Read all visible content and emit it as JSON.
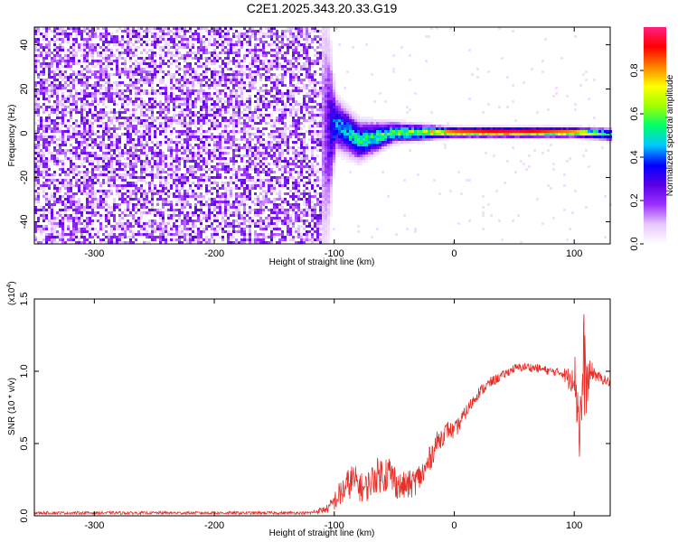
{
  "title": "C2E1.2025.343.20.33.G19",
  "chart_data": [
    {
      "type": "heatmap",
      "title": "",
      "xlabel": "Height of straight line (km)",
      "ylabel": "Frequency (Hz)",
      "xlim": [
        -350,
        130
      ],
      "ylim": [
        -50,
        48
      ],
      "x_ticks": [
        "-300",
        "-200",
        "-100",
        "0",
        "100"
      ],
      "y_ticks": [
        "-40",
        "-20",
        "0",
        "20",
        "40"
      ],
      "colorbar": {
        "label": "Normalized spectral amplitude",
        "range": [
          0,
          1
        ],
        "ticks": [
          "0.0",
          "0.2",
          "0.4",
          "0.6",
          "0.8"
        ],
        "colors": [
          "#ffffff",
          "#e6c8ff",
          "#9b30ff",
          "#5a00e6",
          "#0000ff",
          "#00c8ff",
          "#00ff6a",
          "#a0ff00",
          "#ffff00",
          "#ff8000",
          "#ff0000",
          "#ff1f80"
        ]
      },
      "description_points": [
        {
          "x": -350,
          "freq_center": 0,
          "spread": 48,
          "amp": 0.15
        },
        {
          "x": -110,
          "freq_center": 0,
          "spread": 48,
          "amp": 0.15
        },
        {
          "x": -100,
          "freq_center": 5,
          "spread": 8,
          "amp": 0.45
        },
        {
          "x": -80,
          "freq_center": -3,
          "spread": 6,
          "amp": 0.55
        },
        {
          "x": -50,
          "freq_center": 1,
          "spread": 3,
          "amp": 0.6
        },
        {
          "x": 0,
          "freq_center": 1,
          "spread": 1.5,
          "amp": 0.85
        },
        {
          "x": 50,
          "freq_center": 1,
          "spread": 1.5,
          "amp": 0.95
        },
        {
          "x": 100,
          "freq_center": 1,
          "spread": 1.5,
          "amp": 0.8
        },
        {
          "x": 130,
          "freq_center": 0,
          "spread": 2,
          "amp": 0.5
        }
      ]
    },
    {
      "type": "line",
      "title": "",
      "xlabel": "Height of straight line (km)",
      "ylabel": "SNR (10 * v/v)",
      "scale_label": "(x10",
      "scale_exp": "4",
      "scale_close": ")",
      "xlim": [
        -350,
        130
      ],
      "ylim": [
        0,
        1.5
      ],
      "x_ticks": [
        "-300",
        "-200",
        "-100",
        "0",
        "100"
      ],
      "y_ticks": [
        "0.0",
        "0.5",
        "1.0",
        "1.5"
      ],
      "line_color": "#e8302a",
      "series": [
        {
          "x": [
            -350,
            -300,
            -250,
            -200,
            -150,
            -120,
            -105,
            -95,
            -85,
            -75,
            -65,
            -55,
            -45,
            -35,
            -25,
            -15,
            -5,
            0,
            10,
            20,
            30,
            40,
            50,
            60,
            70,
            80,
            90,
            95,
            100,
            105,
            108,
            110,
            115,
            120,
            130
          ],
          "y": [
            0.02,
            0.02,
            0.02,
            0.02,
            0.02,
            0.02,
            0.05,
            0.15,
            0.25,
            0.18,
            0.28,
            0.3,
            0.2,
            0.22,
            0.3,
            0.5,
            0.6,
            0.58,
            0.72,
            0.85,
            0.92,
            0.97,
            1.02,
            1.03,
            1.02,
            1.0,
            0.99,
            0.95,
            1.0,
            0.6,
            1.05,
            0.9,
            1.0,
            0.96,
            0.92
          ],
          "noise": [
            0.01,
            0.01,
            0.01,
            0.01,
            0.01,
            0.01,
            0.03,
            0.1,
            0.12,
            0.1,
            0.12,
            0.14,
            0.1,
            0.1,
            0.1,
            0.08,
            0.06,
            0.06,
            0.05,
            0.04,
            0.04,
            0.03,
            0.03,
            0.03,
            0.03,
            0.03,
            0.03,
            0.08,
            0.15,
            0.35,
            0.4,
            0.2,
            0.06,
            0.04,
            0.03
          ]
        }
      ]
    }
  ]
}
